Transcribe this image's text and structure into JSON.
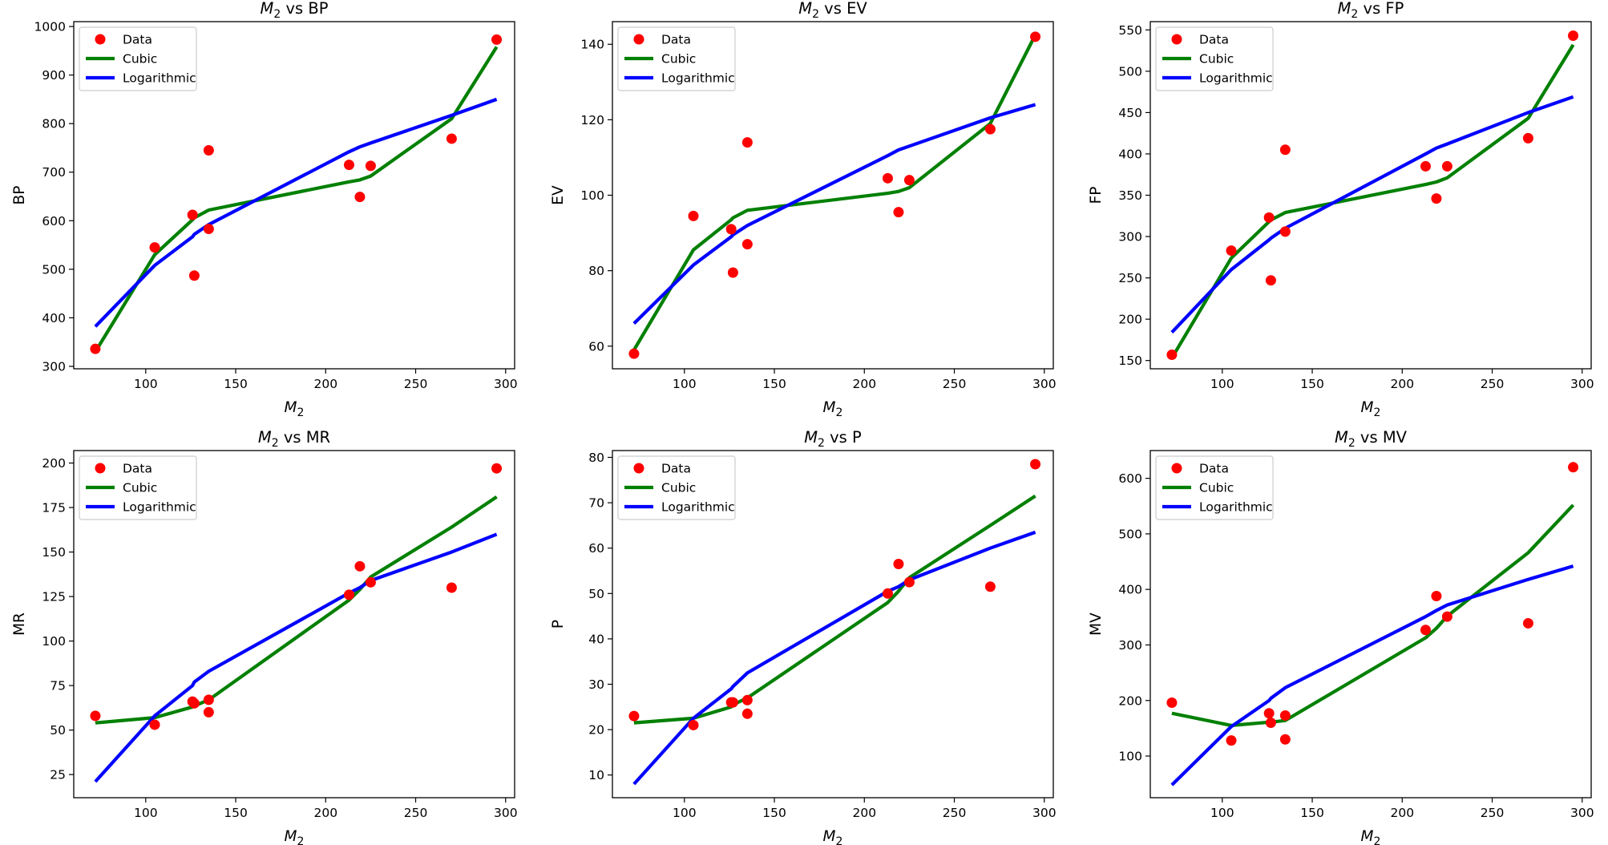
{
  "chart_data": [
    {
      "type": "scatter",
      "title": "M2 vs BP",
      "title_main": "M",
      "title_sub": "2",
      "title_rest": " vs BP",
      "xlabel_main": "M",
      "xlabel_sub": "2",
      "ylabel": "BP",
      "xlim": [
        60,
        305
      ],
      "ylim": [
        295,
        1010
      ],
      "xticks": [
        100,
        150,
        200,
        250,
        300
      ],
      "yticks": [
        300,
        400,
        500,
        600,
        700,
        800,
        900,
        1000
      ],
      "legend_position": "upper-left",
      "series": [
        {
          "name": "Data",
          "kind": "scatter",
          "color": "#ff0000",
          "x": [
            72,
            105,
            126,
            127,
            135,
            135,
            213,
            219,
            225,
            270,
            295
          ],
          "y": [
            336,
            545,
            612,
            487,
            745,
            583,
            715,
            649,
            713,
            769,
            973
          ]
        },
        {
          "name": "Cubic",
          "kind": "line",
          "color": "#008000",
          "x": [
            72,
            105,
            126,
            127,
            135,
            213,
            219,
            225,
            270,
            295
          ],
          "y": [
            330,
            530,
            602,
            606,
            622,
            680,
            684,
            692,
            810,
            958
          ]
        },
        {
          "name": "Logarithmic",
          "kind": "line",
          "color": "#0000ff",
          "x": [
            72,
            105,
            126,
            127,
            135,
            213,
            219,
            225,
            270,
            295
          ],
          "y": [
            382,
            508,
            567,
            572,
            592,
            742,
            752,
            760,
            817,
            850
          ]
        }
      ]
    },
    {
      "type": "scatter",
      "title": "M2 vs EV",
      "title_main": "M",
      "title_sub": "2",
      "title_rest": " vs EV",
      "xlabel_main": "M",
      "xlabel_sub": "2",
      "ylabel": "EV",
      "xlim": [
        60,
        305
      ],
      "ylim": [
        54,
        146
      ],
      "xticks": [
        100,
        150,
        200,
        250,
        300
      ],
      "yticks": [
        60,
        80,
        100,
        120,
        140
      ],
      "legend_position": "upper-left",
      "series": [
        {
          "name": "Data",
          "kind": "scatter",
          "color": "#ff0000",
          "x": [
            72,
            105,
            126,
            127,
            135,
            135,
            213,
            219,
            225,
            270,
            295
          ],
          "y": [
            58,
            94.5,
            91,
            79.5,
            114,
            87,
            104.5,
            95.5,
            104,
            117.5,
            142
          ]
        },
        {
          "name": "Cubic",
          "kind": "line",
          "color": "#008000",
          "x": [
            72,
            105,
            126,
            127,
            135,
            213,
            219,
            225,
            270,
            295
          ],
          "y": [
            59,
            85.5,
            93.5,
            94,
            96,
            100.5,
            101,
            102,
            119,
            142.5
          ]
        },
        {
          "name": "Logarithmic",
          "kind": "line",
          "color": "#0000ff",
          "x": [
            72,
            105,
            126,
            127,
            135,
            213,
            219,
            225,
            270,
            295
          ],
          "y": [
            66,
            81.5,
            89,
            89.5,
            92,
            110.5,
            112,
            113,
            120.5,
            124
          ]
        }
      ]
    },
    {
      "type": "scatter",
      "title": "M2 vs FP",
      "title_main": "M",
      "title_sub": "2",
      "title_rest": " vs FP",
      "xlabel_main": "M",
      "xlabel_sub": "2",
      "ylabel": "FP",
      "xlim": [
        60,
        305
      ],
      "ylim": [
        140,
        560
      ],
      "xticks": [
        100,
        150,
        200,
        250,
        300
      ],
      "yticks": [
        150,
        200,
        250,
        300,
        350,
        400,
        450,
        500,
        550
      ],
      "legend_position": "upper-left",
      "series": [
        {
          "name": "Data",
          "kind": "scatter",
          "color": "#ff0000",
          "x": [
            72,
            105,
            126,
            127,
            135,
            135,
            213,
            219,
            225,
            270,
            295
          ],
          "y": [
            157,
            283,
            323,
            247,
            405,
            306,
            385,
            346,
            385,
            419,
            543
          ]
        },
        {
          "name": "Cubic",
          "kind": "line",
          "color": "#008000",
          "x": [
            72,
            105,
            126,
            127,
            135,
            213,
            219,
            225,
            270,
            295
          ],
          "y": [
            153,
            274,
            318,
            320,
            329,
            363,
            366,
            371,
            443,
            532
          ]
        },
        {
          "name": "Logarithmic",
          "kind": "line",
          "color": "#0000ff",
          "x": [
            72,
            105,
            126,
            127,
            135,
            213,
            219,
            225,
            270,
            295
          ],
          "y": [
            184,
            260,
            296,
            298,
            310,
            400,
            407,
            412,
            450,
            469
          ]
        }
      ]
    },
    {
      "type": "scatter",
      "title": "M2 vs MR",
      "title_main": "M",
      "title_sub": "2",
      "title_rest": " vs MR",
      "xlabel_main": "M",
      "xlabel_sub": "2",
      "ylabel": "MR",
      "xlim": [
        60,
        305
      ],
      "ylim": [
        12,
        207
      ],
      "xticks": [
        100,
        150,
        200,
        250,
        300
      ],
      "yticks": [
        25,
        50,
        75,
        100,
        125,
        150,
        175,
        200
      ],
      "legend_position": "upper-left",
      "series": [
        {
          "name": "Data",
          "kind": "scatter",
          "color": "#ff0000",
          "x": [
            72,
            105,
            126,
            127,
            135,
            135,
            213,
            219,
            225,
            270,
            295
          ],
          "y": [
            58,
            53,
            66,
            65,
            67,
            60,
            126,
            142,
            133,
            130,
            197
          ]
        },
        {
          "name": "Cubic",
          "kind": "line",
          "color": "#008000",
          "x": [
            72,
            105,
            126,
            127,
            135,
            213,
            219,
            225,
            270,
            295
          ],
          "y": [
            54,
            57,
            63,
            63.5,
            67,
            123,
            129,
            136,
            164,
            181
          ]
        },
        {
          "name": "Logarithmic",
          "kind": "line",
          "color": "#0000ff",
          "x": [
            72,
            105,
            126,
            127,
            135,
            213,
            219,
            225,
            270,
            295
          ],
          "y": [
            21,
            58,
            75,
            77,
            83,
            127,
            130,
            134,
            150,
            160
          ]
        }
      ]
    },
    {
      "type": "scatter",
      "title": "M2 vs P",
      "title_main": "M",
      "title_sub": "2",
      "title_rest": " vs P",
      "xlabel_main": "M",
      "xlabel_sub": "2",
      "ylabel": "P",
      "xlim": [
        60,
        305
      ],
      "ylim": [
        5,
        81.5
      ],
      "xticks": [
        100,
        150,
        200,
        250,
        300
      ],
      "yticks": [
        10,
        20,
        30,
        40,
        50,
        60,
        70,
        80
      ],
      "legend_position": "upper-left",
      "series": [
        {
          "name": "Data",
          "kind": "scatter",
          "color": "#ff0000",
          "x": [
            72,
            105,
            126,
            127,
            135,
            135,
            213,
            219,
            225,
            270,
            295
          ],
          "y": [
            23,
            21,
            26,
            26,
            26.5,
            23.5,
            50,
            56.5,
            52.5,
            51.5,
            78.5
          ]
        },
        {
          "name": "Cubic",
          "kind": "line",
          "color": "#008000",
          "x": [
            72,
            105,
            126,
            127,
            135,
            213,
            219,
            225,
            270,
            295
          ],
          "y": [
            21.5,
            22.5,
            25,
            25.5,
            27,
            48,
            50.5,
            53.5,
            65,
            71.5
          ]
        },
        {
          "name": "Logarithmic",
          "kind": "line",
          "color": "#0000ff",
          "x": [
            72,
            105,
            126,
            127,
            135,
            213,
            219,
            225,
            270,
            295
          ],
          "y": [
            8,
            22.5,
            29,
            29.5,
            32.5,
            50.5,
            51.5,
            53,
            60,
            63.5
          ]
        }
      ]
    },
    {
      "type": "scatter",
      "title": "M2 vs MV",
      "title_main": "M",
      "title_sub": "2",
      "title_rest": " vs MV",
      "xlabel_main": "M",
      "xlabel_sub": "2",
      "ylabel": "MV",
      "xlim": [
        60,
        305
      ],
      "ylim": [
        25,
        650
      ],
      "xticks": [
        100,
        150,
        200,
        250,
        300
      ],
      "yticks": [
        100,
        200,
        300,
        400,
        500,
        600
      ],
      "legend_position": "upper-left",
      "series": [
        {
          "name": "Data",
          "kind": "scatter",
          "color": "#ff0000",
          "x": [
            72,
            105,
            126,
            127,
            135,
            135,
            213,
            219,
            225,
            270,
            295
          ],
          "y": [
            196,
            128,
            177,
            160,
            173,
            130,
            327,
            388,
            351,
            339,
            620
          ]
        },
        {
          "name": "Cubic",
          "kind": "line",
          "color": "#008000",
          "x": [
            72,
            105,
            126,
            127,
            135,
            213,
            219,
            225,
            270,
            295
          ],
          "y": [
            177,
            155,
            161,
            161,
            164,
            313,
            330,
            352,
            466,
            552
          ]
        },
        {
          "name": "Logarithmic",
          "kind": "line",
          "color": "#0000ff",
          "x": [
            72,
            105,
            126,
            127,
            135,
            213,
            219,
            225,
            270,
            295
          ],
          "y": [
            48,
            153,
            200,
            204,
            223,
            351,
            362,
            372,
            418,
            442
          ]
        }
      ]
    }
  ]
}
